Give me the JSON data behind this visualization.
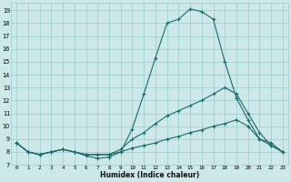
{
  "xlabel": "Humidex (Indice chaleur)",
  "xlim": [
    -0.5,
    23.5
  ],
  "ylim": [
    7,
    19.6
  ],
  "yticks": [
    7,
    8,
    9,
    10,
    11,
    12,
    13,
    14,
    15,
    16,
    17,
    18,
    19
  ],
  "xticks": [
    0,
    1,
    2,
    3,
    4,
    5,
    6,
    7,
    8,
    9,
    10,
    11,
    12,
    13,
    14,
    15,
    16,
    17,
    18,
    19,
    20,
    21,
    22,
    23
  ],
  "background_color": "#cce8e8",
  "grid_color": "#99cccc",
  "line_color": "#1a6b6b",
  "line1_x": [
    0,
    1,
    2,
    3,
    4,
    5,
    6,
    7,
    8,
    9,
    10,
    11,
    12,
    13,
    14,
    15,
    16,
    17,
    18,
    19,
    20,
    21,
    22,
    23
  ],
  "line1_y": [
    8.7,
    8.0,
    7.8,
    8.0,
    8.2,
    8.0,
    7.7,
    7.5,
    7.6,
    8.0,
    9.8,
    12.5,
    15.3,
    18.0,
    18.3,
    19.1,
    18.9,
    18.3,
    15.0,
    12.2,
    10.5,
    9.0,
    8.7,
    8.0
  ],
  "line2_x": [
    0,
    1,
    2,
    3,
    4,
    5,
    6,
    7,
    8,
    9,
    10,
    11,
    12,
    13,
    14,
    15,
    16,
    17,
    18,
    19,
    20,
    21,
    22,
    23
  ],
  "line2_y": [
    8.7,
    8.0,
    7.8,
    8.0,
    8.2,
    8.0,
    7.8,
    7.8,
    7.8,
    8.2,
    9.0,
    9.5,
    10.2,
    10.8,
    11.2,
    11.6,
    12.0,
    12.5,
    13.0,
    12.5,
    11.0,
    9.5,
    8.5,
    8.0
  ],
  "line3_x": [
    0,
    1,
    2,
    3,
    4,
    5,
    6,
    7,
    8,
    9,
    10,
    11,
    12,
    13,
    14,
    15,
    16,
    17,
    18,
    19,
    20,
    21,
    22,
    23
  ],
  "line3_y": [
    8.7,
    8.0,
    7.8,
    8.0,
    8.2,
    8.0,
    7.8,
    7.8,
    7.8,
    8.0,
    8.3,
    8.5,
    8.7,
    9.0,
    9.2,
    9.5,
    9.7,
    10.0,
    10.2,
    10.5,
    10.0,
    9.0,
    8.5,
    8.0
  ]
}
